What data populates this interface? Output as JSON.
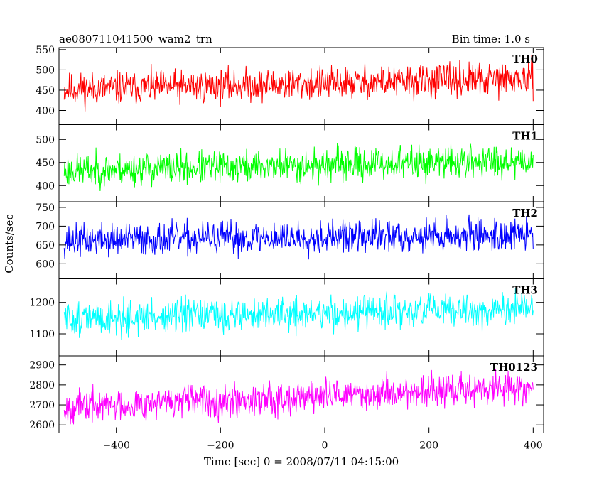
{
  "header": {
    "left_title": "ae080711041500_wam2_trn",
    "right_title": "Bin time: 1.0 s"
  },
  "axes": {
    "xlabel": "Time [sec] 0 = 2008/07/11 04:15:00",
    "ylabel": "Counts/sec"
  },
  "chart_data": {
    "type": "line",
    "title": "ae080711041500_wam2_trn",
    "subtitle": "Bin time: 1.0 s",
    "xlabel": "Time [sec] 0 = 2008/07/11 04:15:00",
    "ylabel": "Counts/sec",
    "xlim": [
      -510,
      420
    ],
    "x_ticks": [
      -400,
      -200,
      0,
      200,
      400
    ],
    "x_tick_labels": [
      "−400",
      "−200",
      "0",
      "200",
      "400"
    ],
    "x_sampling": {
      "start": -500,
      "end": 400,
      "step": 1
    },
    "panels": [
      {
        "name": "TH0",
        "color": "#ff0000",
        "ylim": [
          365,
          555
        ],
        "y_ticks": [
          400,
          450,
          500,
          550
        ],
        "baseline_start": 452,
        "baseline_end": 478,
        "noise_amplitude": 30,
        "seed": 11
      },
      {
        "name": "TH1",
        "color": "#00ff00",
        "ylim": [
          365,
          532
        ],
        "y_ticks": [
          400,
          450,
          500
        ],
        "baseline_start": 432,
        "baseline_end": 455,
        "noise_amplitude": 26,
        "seed": 23
      },
      {
        "name": "TH2",
        "color": "#0000ff",
        "ylim": [
          560,
          765
        ],
        "y_ticks": [
          600,
          650,
          700,
          750
        ],
        "baseline_start": 662,
        "baseline_end": 678,
        "noise_amplitude": 32,
        "seed": 37
      },
      {
        "name": "TH3",
        "color": "#00ffff",
        "ylim": [
          1030,
          1275
        ],
        "y_ticks": [
          1100,
          1200
        ],
        "baseline_start": 1148,
        "baseline_end": 1178,
        "noise_amplitude": 40,
        "seed": 51
      },
      {
        "name": "TH0123",
        "color": "#ff00ff",
        "ylim": [
          2560,
          2945
        ],
        "y_ticks": [
          2600,
          2700,
          2800,
          2900
        ],
        "baseline_start": 2690,
        "baseline_end": 2790,
        "noise_amplitude": 60,
        "seed": 67
      }
    ]
  }
}
